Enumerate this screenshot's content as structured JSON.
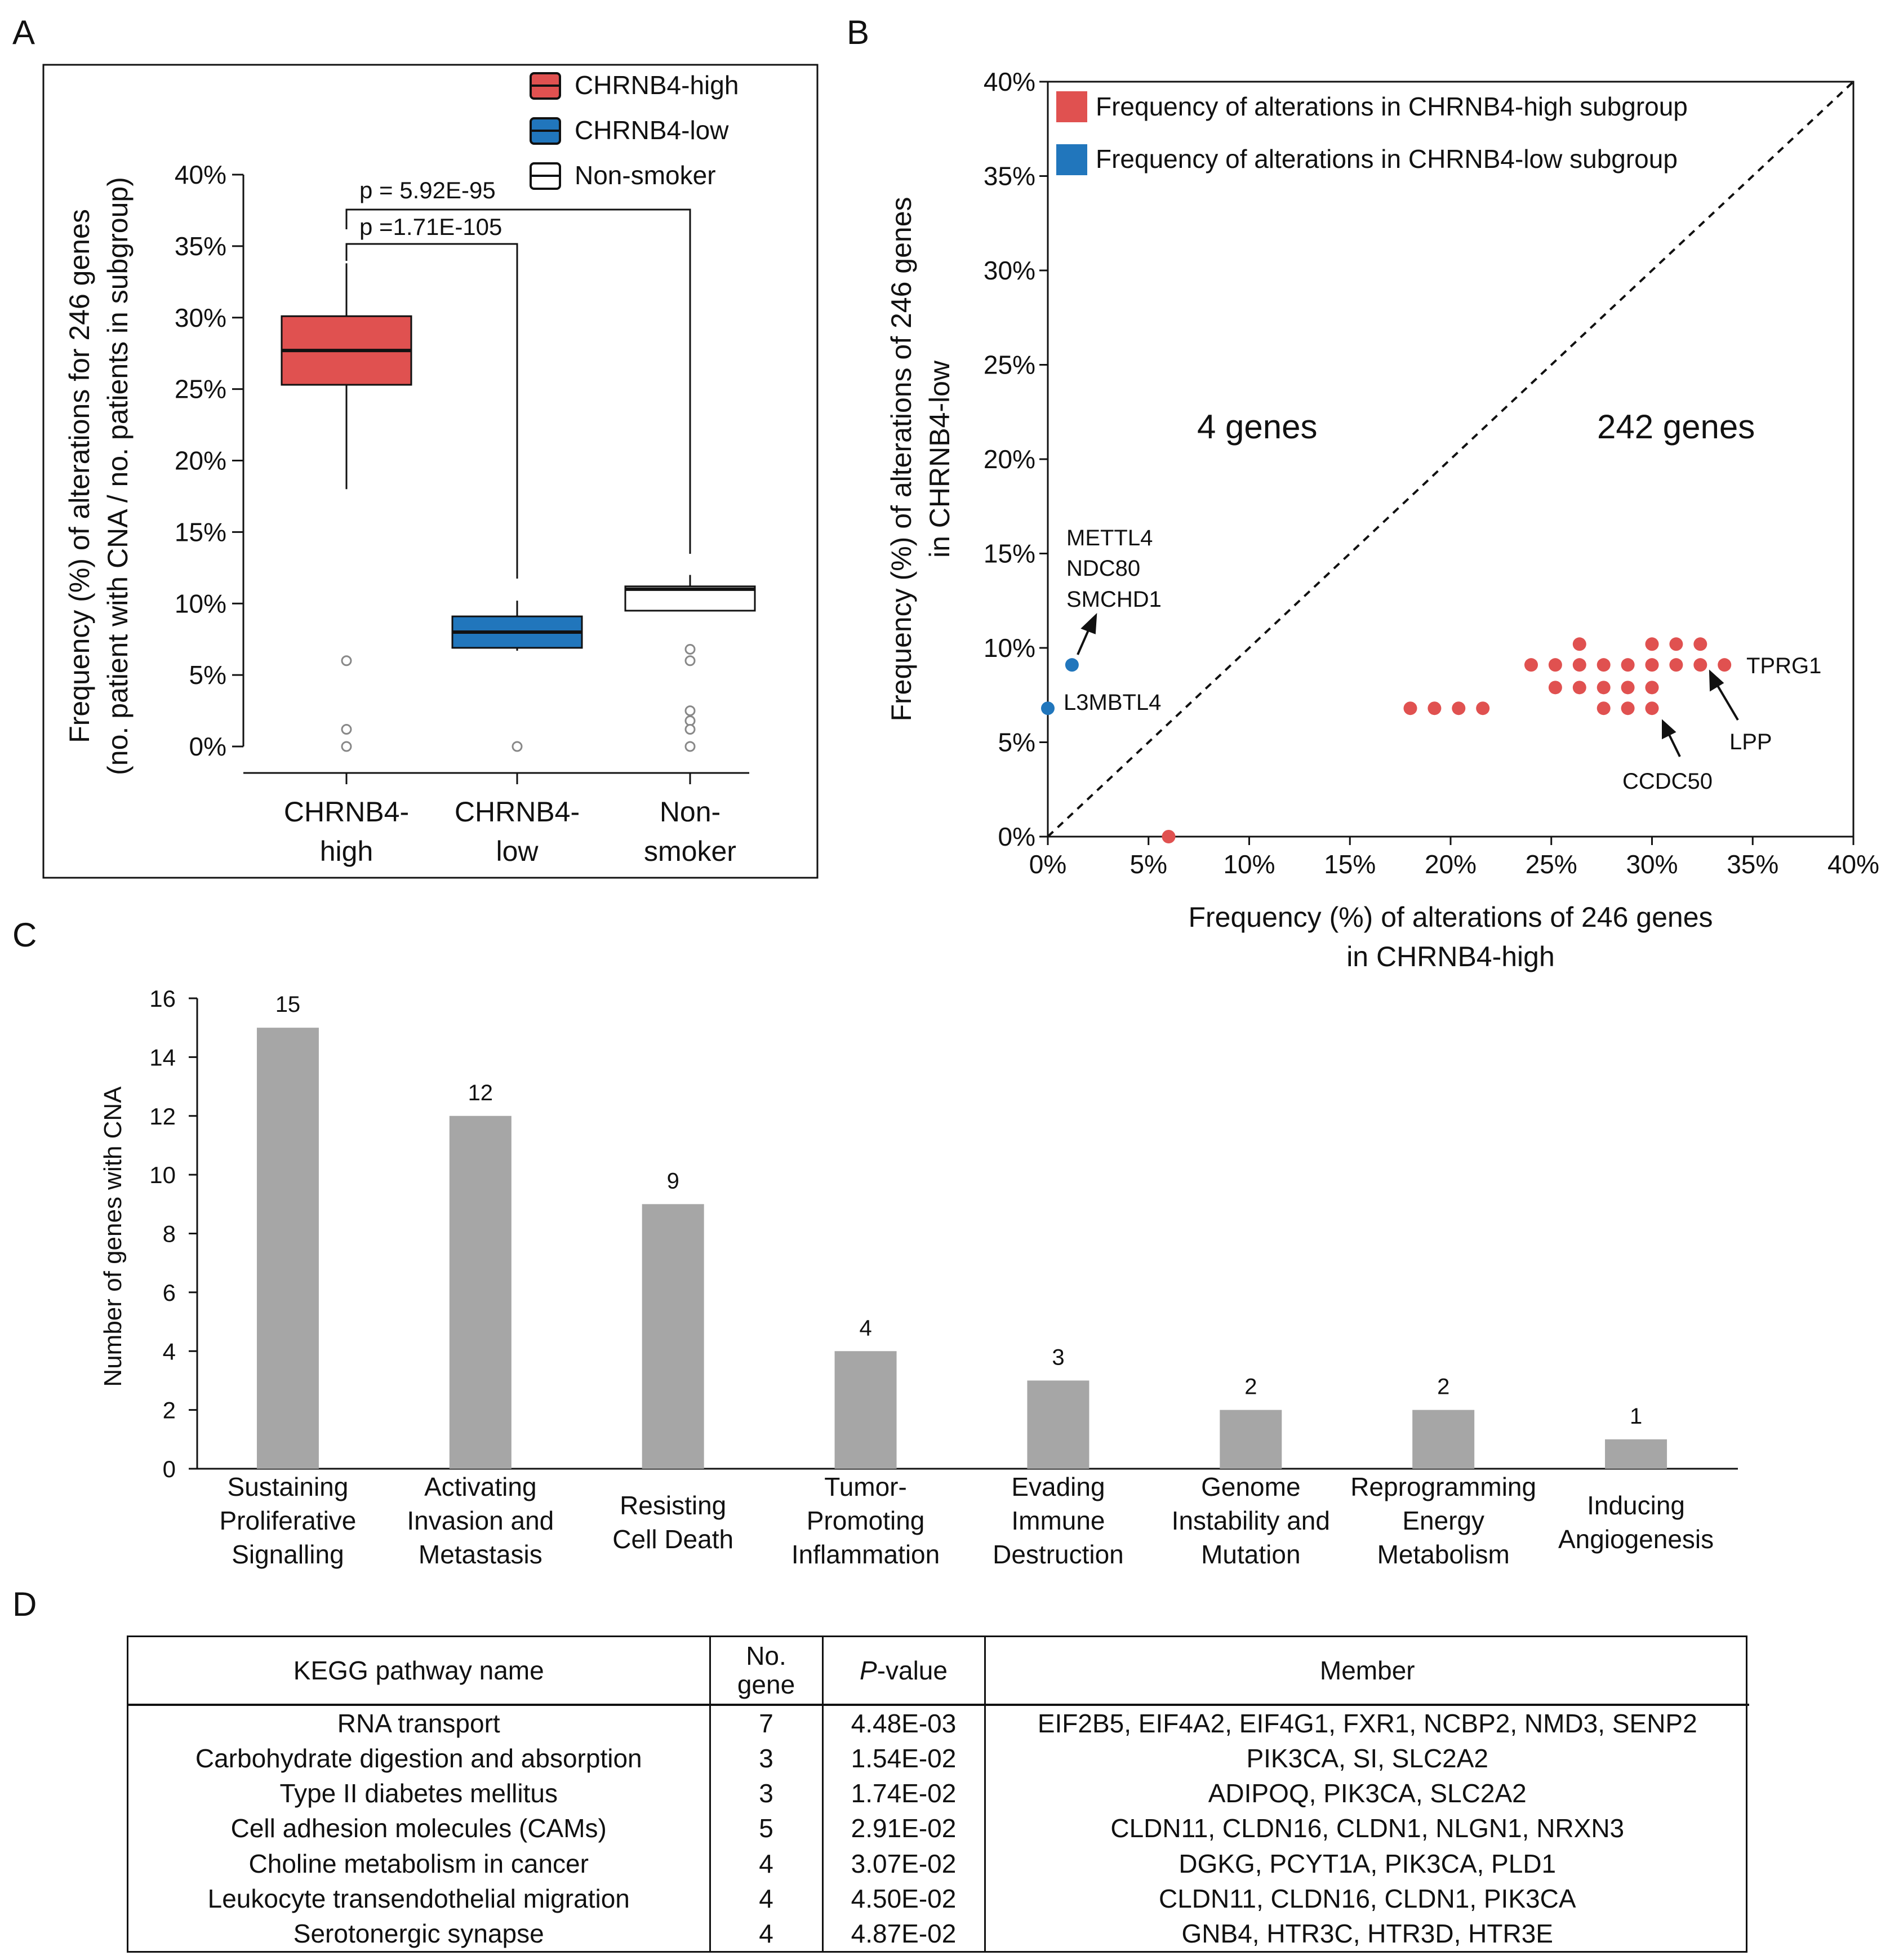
{
  "panels": {
    "a": "A",
    "b": "B",
    "c": "C",
    "d": "D"
  },
  "chart_data": [
    {
      "type": "box",
      "panel": "A",
      "ylabel_line1": "Frequency (%) of alterations for 246 genes",
      "ylabel_line2": "(no. patient with CNA / no. patients in subgroup)",
      "ylim": [
        0,
        40
      ],
      "y_ticks": [
        "0%",
        "5%",
        "10%",
        "15%",
        "20%",
        "25%",
        "30%",
        "35%",
        "40%"
      ],
      "categories": [
        {
          "line1": "CHRNB4-",
          "line2": "high"
        },
        {
          "line1": "CHRNB4-",
          "line2": "low"
        },
        {
          "line1": "Non-",
          "line2": "smoker"
        }
      ],
      "boxes": [
        {
          "name": "CHRNB4-high",
          "color": "#e05150",
          "whisker_low": 18,
          "q1": 25.3,
          "median": 27.7,
          "q3": 30.1,
          "whisker_high": 33.8,
          "outliers": [
            6,
            1.2,
            0
          ]
        },
        {
          "name": "CHRNB4-low",
          "color": "#2176bc",
          "whisker_low": 6.7,
          "q1": 6.9,
          "median": 8,
          "q3": 9.1,
          "whisker_high": 10.2,
          "outliers": [
            0
          ]
        },
        {
          "name": "Non-smoker",
          "color": "#ffffff",
          "whisker_low": 9.5,
          "q1": 9.5,
          "median": 11,
          "q3": 11.2,
          "whisker_high": 12,
          "outliers": [
            6.8,
            6,
            2.5,
            1.8,
            1.2,
            0
          ]
        }
      ],
      "legend": [
        {
          "label": "CHRNB4-high",
          "color": "#e05150"
        },
        {
          "label": "CHRNB4-low",
          "color": "#2176bc"
        },
        {
          "label": "Non-smoker",
          "color": "#ffffff"
        }
      ],
      "annotations": {
        "p_high_vs_nonsmoker": "p = 5.92E-95",
        "p_high_vs_low": "p =1.71E-105"
      }
    },
    {
      "type": "scatter",
      "panel": "B",
      "xlabel_line1": "Frequency (%) of alterations of 246 genes",
      "xlabel_line2": "in CHRNB4-high",
      "ylabel_line1": "Frequency (%) of alterations of 246 genes",
      "ylabel_line2": "in CHRNB4-low",
      "xlim": [
        0,
        40
      ],
      "ylim": [
        0,
        40
      ],
      "x_ticks": [
        "0%",
        "5%",
        "10%",
        "15%",
        "20%",
        "25%",
        "30%",
        "35%",
        "40%"
      ],
      "y_ticks": [
        "0%",
        "5%",
        "10%",
        "15%",
        "20%",
        "25%",
        "30%",
        "35%",
        "40%"
      ],
      "legend": [
        {
          "label": "Frequency of alterations in CHRNB4-high subgroup",
          "color": "#e05150"
        },
        {
          "label": "Frequency of alterations in CHRNB4-low subgroup",
          "color": "#2176bc"
        }
      ],
      "region_labels": {
        "upper": "4 genes",
        "lower": "242 genes"
      },
      "blue_points": [
        [
          1.2,
          9.1
        ],
        [
          0,
          6.8
        ]
      ],
      "red_points": [
        [
          6,
          0
        ],
        [
          18,
          6.8
        ],
        [
          19.2,
          6.8
        ],
        [
          20.4,
          6.8
        ],
        [
          21.6,
          6.8
        ],
        [
          27.6,
          6.8
        ],
        [
          28.8,
          6.8
        ],
        [
          30,
          6.8
        ],
        [
          25.2,
          7.9
        ],
        [
          26.4,
          7.9
        ],
        [
          27.6,
          7.9
        ],
        [
          28.8,
          7.9
        ],
        [
          30,
          7.9
        ],
        [
          24,
          9.1
        ],
        [
          25.2,
          9.1
        ],
        [
          26.4,
          9.1
        ],
        [
          27.6,
          9.1
        ],
        [
          28.8,
          9.1
        ],
        [
          30,
          9.1
        ],
        [
          31.2,
          9.1
        ],
        [
          32.4,
          9.1
        ],
        [
          33.6,
          9.1
        ],
        [
          26.4,
          10.2
        ],
        [
          30,
          10.2
        ],
        [
          31.2,
          10.2
        ],
        [
          32.4,
          10.2
        ]
      ],
      "gene_labels": {
        "upper_group": [
          "METTL4",
          "NDC80",
          "SMCHD1"
        ],
        "l3mbtl4": "L3MBTL4",
        "tprg1": "TPRG1",
        "lpp": "LPP",
        "ccdc50": "CCDC50"
      }
    },
    {
      "type": "bar",
      "panel": "C",
      "ylabel": "Number of genes with CNA",
      "ylim": [
        0,
        16
      ],
      "y_ticks": [
        "0",
        "2",
        "4",
        "6",
        "8",
        "10",
        "12",
        "14",
        "16"
      ],
      "categories": [
        [
          "Sustaining",
          "Proliferative",
          "Signalling"
        ],
        [
          "Activating",
          "Invasion and",
          "Metastasis"
        ],
        [
          "Resisting",
          "Cell Death"
        ],
        [
          "Tumor-",
          "Promoting",
          "Inflammation"
        ],
        [
          "Evading",
          "Immune",
          "Destruction"
        ],
        [
          "Genome",
          "Instability and",
          "Mutation"
        ],
        [
          "Reprogramming",
          "Energy",
          "Metabolism"
        ],
        [
          "Inducing",
          "Angiogenesis"
        ]
      ],
      "values": [
        15,
        12,
        9,
        4,
        3,
        2,
        2,
        1
      ],
      "value_labels": [
        "15",
        "12",
        "9",
        "4",
        "3",
        "2",
        "2",
        "1"
      ],
      "bar_color": "#a6a6a6"
    }
  ],
  "table": {
    "headers": {
      "pathway": "KEGG pathway name",
      "nogene_line1": "No.",
      "nogene_line2": "gene",
      "pvalue_italic": "P",
      "pvalue_rest": "-value",
      "member": "Member"
    },
    "rows": [
      {
        "pathway": "RNA transport",
        "n": "7",
        "p": "4.48E-03",
        "member": "EIF2B5, EIF4A2, EIF4G1, FXR1, NCBP2, NMD3, SENP2"
      },
      {
        "pathway": "Carbohydrate digestion and absorption",
        "n": "3",
        "p": "1.54E-02",
        "member": "PIK3CA, SI, SLC2A2"
      },
      {
        "pathway": "Type II diabetes mellitus",
        "n": "3",
        "p": "1.74E-02",
        "member": "ADIPOQ, PIK3CA, SLC2A2"
      },
      {
        "pathway": "Cell adhesion molecules (CAMs)",
        "n": "5",
        "p": "2.91E-02",
        "member": "CLDN11, CLDN16, CLDN1, NLGN1, NRXN3"
      },
      {
        "pathway": "Choline metabolism in cancer",
        "n": "4",
        "p": "3.07E-02",
        "member": "DGKG, PCYT1A, PIK3CA, PLD1"
      },
      {
        "pathway": "Leukocyte transendothelial migration",
        "n": "4",
        "p": "4.50E-02",
        "member": "CLDN11, CLDN16, CLDN1, PIK3CA"
      },
      {
        "pathway": "Serotonergic synapse",
        "n": "4",
        "p": "4.87E-02",
        "member": "GNB4, HTR3C, HTR3D, HTR3E"
      }
    ]
  }
}
